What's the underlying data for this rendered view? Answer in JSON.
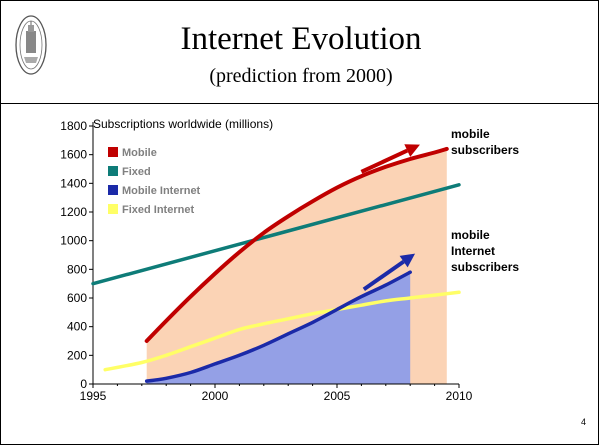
{
  "slide": {
    "title": "Internet Evolution",
    "subtitle": "(prediction from 2000)",
    "page_number": "4"
  },
  "chart_data": {
    "type": "line",
    "title": "",
    "ylabel": "Subscriptions worldwide (millions)",
    "xlabel": "",
    "xlim": [
      1995,
      2010
    ],
    "ylim": [
      0,
      1800
    ],
    "x_ticks": [
      1995,
      2000,
      2005,
      2010
    ],
    "y_ticks": [
      0,
      200,
      400,
      600,
      800,
      1000,
      1200,
      1400,
      1600,
      1800
    ],
    "legend_position": "top-left",
    "grid": false,
    "series": [
      {
        "name": "Mobile",
        "color": "#c00000",
        "x": [
          1997.2,
          1998,
          1999,
          2000,
          2001,
          2002,
          2003,
          2004,
          2005,
          2006,
          2007,
          2008,
          2009,
          2009.5
        ],
        "y": [
          300,
          440,
          610,
          770,
          920,
          1055,
          1170,
          1275,
          1370,
          1450,
          1515,
          1570,
          1615,
          1640
        ]
      },
      {
        "name": "Fixed",
        "color": "#0e7c78",
        "x": [
          1995,
          2010
        ],
        "y": [
          700,
          1390
        ]
      },
      {
        "name": "Mobile Internet",
        "color": "#1b2aa8",
        "x": [
          1997.2,
          1998,
          1999,
          2000,
          2001,
          2002,
          2003,
          2004,
          2005,
          2006,
          2007,
          2008
        ],
        "y": [
          20,
          40,
          80,
          140,
          200,
          270,
          350,
          430,
          520,
          610,
          690,
          780
        ]
      },
      {
        "name": "Fixed Internet",
        "color": "#ffff66",
        "x": [
          1995.5,
          1997,
          1998,
          1999,
          2000,
          2001,
          2002,
          2003,
          2004,
          2005,
          2006,
          2007,
          2008,
          2009,
          2010
        ],
        "y": [
          100,
          150,
          200,
          260,
          320,
          380,
          420,
          455,
          490,
          520,
          550,
          580,
          600,
          620,
          640
        ]
      }
    ],
    "areas": [
      {
        "series": "Mobile",
        "fill": "#fbd3b5",
        "x_end": 2009.5
      },
      {
        "series": "Mobile Internet",
        "fill": "#94a0e6",
        "x_end": 2008
      }
    ],
    "annotations": [
      {
        "lines": [
          "mobile",
          "subscribers"
        ],
        "arrow": {
          "x1": 2006,
          "y1": 1480,
          "x2": 2008.4,
          "y2": 1670,
          "color": "#c00000"
        }
      },
      {
        "lines": [
          "mobile",
          "Internet",
          "subscribers"
        ],
        "arrow": {
          "x1": 2006.1,
          "y1": 660,
          "x2": 2008.2,
          "y2": 910,
          "color": "#1b2aa8"
        }
      }
    ]
  }
}
